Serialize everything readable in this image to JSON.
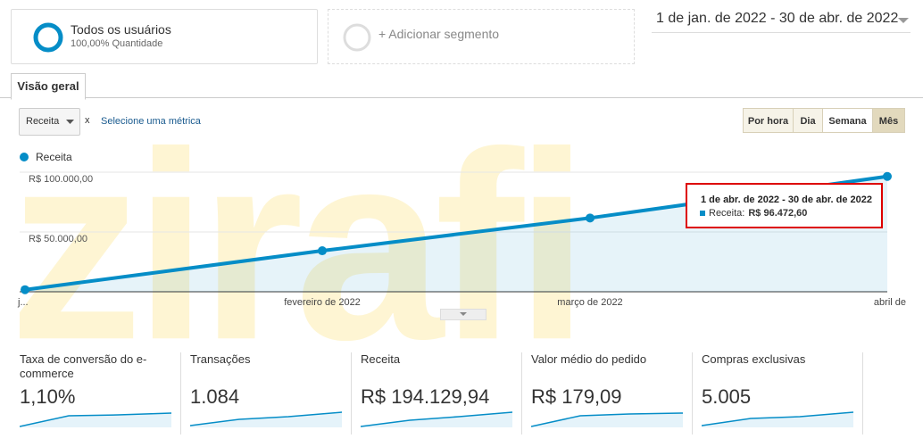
{
  "watermark": "zirafi",
  "segments": {
    "active": {
      "title": "Todos os usuários",
      "subtitle": "100,00% Quantidade"
    },
    "add": "+ Adicionar segmento"
  },
  "date_range": "1 de jan. de 2022 - 30 de abr. de 2022",
  "tabs": [
    "Visão geral"
  ],
  "controls": {
    "metric": "Receita",
    "remove": "x",
    "select_metric": "Selecione uma métrica",
    "granularity": [
      "Por hora",
      "Dia",
      "Semana",
      "Mês"
    ]
  },
  "chart_data": {
    "type": "line",
    "categories": [
      "j...",
      "fevereiro de 2022",
      "março de 2022",
      "abril de"
    ],
    "series": [
      {
        "name": "Receita",
        "color": "#058dc7",
        "values": [
          1700,
          34300,
          61700,
          96472.6
        ]
      }
    ],
    "ylim": [
      0,
      100000
    ],
    "yticks": [
      {
        "value": 50000,
        "label": "R$ 50.000,00"
      },
      {
        "value": 100000,
        "label": "R$ 100.000,00"
      }
    ],
    "grid": true,
    "tooltip": {
      "title": "1 de abr. de 2022 - 30 de abr. de 2022",
      "label": "Receita:",
      "value": "R$ 96.472,60"
    }
  },
  "metrics": [
    {
      "label": "Taxa de conversão do e-commerce",
      "value": "1,10%"
    },
    {
      "label": "Transações",
      "value": "1.084"
    },
    {
      "label": "Receita",
      "value": "R$ 194.129,94"
    },
    {
      "label": "Valor médio do pedido",
      "value": "R$ 179,09"
    },
    {
      "label": "Compras exclusivas",
      "value": "5.005"
    }
  ]
}
